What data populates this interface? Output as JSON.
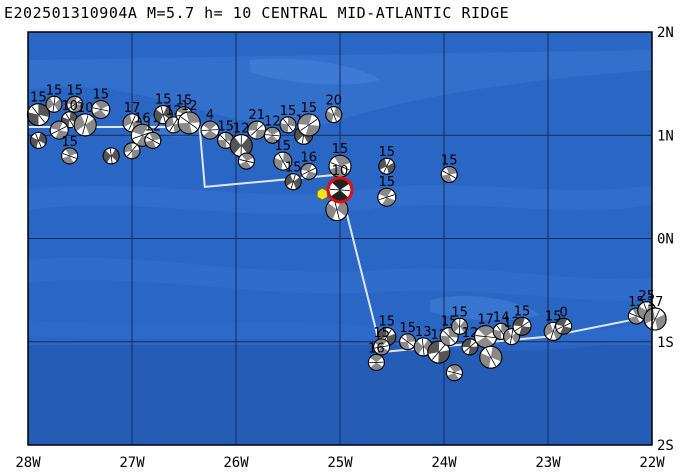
{
  "title": "E202501310904A M=5.7 h= 10 CENTRAL MID-ATLANTIC RIDGE",
  "lat_labels": [
    "2N",
    "1N",
    "0N",
    "1S",
    "2S"
  ],
  "lon_labels": [
    "28W",
    "27W",
    "26W",
    "25W",
    "24W",
    "23W",
    "22W"
  ],
  "extent": {
    "lon": [
      -28,
      -22
    ],
    "lat": [
      -2,
      2
    ]
  },
  "colors": {
    "ocean": "#2a66c4",
    "ocean_shallow": "#3b7ad6",
    "grid": "#1a2a55",
    "ridge": "#dfe6f2",
    "event": "#e01010",
    "epicenter": "#f2e51e"
  },
  "epicenter": {
    "lon": -25.17,
    "lat": 0.43,
    "symbol": "yellow-hexagon"
  },
  "main_event": {
    "lon": -25.0,
    "lat": 0.47,
    "label": "10"
  },
  "plate_boundary": [
    [
      -28.0,
      1.08
    ],
    [
      -26.35,
      1.08
    ],
    [
      -26.3,
      0.5
    ],
    [
      -25.0,
      0.62
    ],
    [
      -24.95,
      0.3
    ],
    [
      -24.6,
      -1.1
    ],
    [
      -23.0,
      -0.95
    ],
    [
      -22.0,
      -0.75
    ]
  ],
  "mechanisms": [
    {
      "lon": -27.9,
      "lat": 1.2,
      "label": "15"
    },
    {
      "lon": -27.75,
      "lat": 1.3,
      "label": "15"
    },
    {
      "lon": -27.55,
      "lat": 1.3,
      "label": "15"
    },
    {
      "lon": -27.3,
      "lat": 1.25,
      "label": "15"
    },
    {
      "lon": -27.6,
      "lat": 1.15,
      "label": "10"
    },
    {
      "lon": -27.45,
      "lat": 1.1,
      "label": "10"
    },
    {
      "lon": -27.7,
      "lat": 1.05,
      "label": ""
    },
    {
      "lon": -27.6,
      "lat": 0.8,
      "label": "15"
    },
    {
      "lon": -27.9,
      "lat": 0.95,
      "label": ""
    },
    {
      "lon": -27.0,
      "lat": 1.12,
      "label": "17"
    },
    {
      "lon": -26.9,
      "lat": 1.0,
      "label": "16"
    },
    {
      "lon": -26.8,
      "lat": 0.95,
      "label": "12"
    },
    {
      "lon": -26.7,
      "lat": 1.2,
      "label": "15"
    },
    {
      "lon": -26.6,
      "lat": 1.1,
      "label": "12"
    },
    {
      "lon": -26.5,
      "lat": 1.2,
      "label": "15"
    },
    {
      "lon": -26.45,
      "lat": 1.12,
      "label": "12"
    },
    {
      "lon": -27.2,
      "lat": 0.8,
      "label": ""
    },
    {
      "lon": -27.0,
      "lat": 0.85,
      "label": ""
    },
    {
      "lon": -26.25,
      "lat": 1.05,
      "label": "4"
    },
    {
      "lon": -26.1,
      "lat": 0.95,
      "label": "15"
    },
    {
      "lon": -25.95,
      "lat": 0.9,
      "label": "12"
    },
    {
      "lon": -25.8,
      "lat": 1.05,
      "label": "21"
    },
    {
      "lon": -25.65,
      "lat": 1.0,
      "label": "12"
    },
    {
      "lon": -25.5,
      "lat": 1.1,
      "label": "15"
    },
    {
      "lon": -25.35,
      "lat": 1.0,
      "label": "12"
    },
    {
      "lon": -25.3,
      "lat": 1.1,
      "label": "15"
    },
    {
      "lon": -25.9,
      "lat": 0.75,
      "label": ""
    },
    {
      "lon": -25.55,
      "lat": 0.75,
      "label": "15"
    },
    {
      "lon": -25.45,
      "lat": 0.55,
      "label": "15"
    },
    {
      "lon": -25.3,
      "lat": 0.65,
      "label": "16"
    },
    {
      "lon": -25.0,
      "lat": 0.7,
      "label": "15"
    },
    {
      "lon": -25.06,
      "lat": 1.2,
      "label": "20"
    },
    {
      "lon": -24.55,
      "lat": 0.7,
      "label": "15"
    },
    {
      "lon": -24.55,
      "lat": 0.4,
      "label": "15"
    },
    {
      "lon": -23.95,
      "lat": 0.62,
      "label": "15"
    },
    {
      "lon": -25.03,
      "lat": 0.28,
      "label": ""
    },
    {
      "lon": -24.55,
      "lat": -0.95,
      "label": "15"
    },
    {
      "lon": -24.6,
      "lat": -1.05,
      "label": "15"
    },
    {
      "lon": -24.35,
      "lat": -1.0,
      "label": "15"
    },
    {
      "lon": -24.2,
      "lat": -1.05,
      "label": "13"
    },
    {
      "lon": -24.05,
      "lat": -1.1,
      "label": "12"
    },
    {
      "lon": -24.65,
      "lat": -1.2,
      "label": "16"
    },
    {
      "lon": -23.95,
      "lat": -0.95,
      "label": "15"
    },
    {
      "lon": -23.85,
      "lat": -0.85,
      "label": "15"
    },
    {
      "lon": -23.75,
      "lat": -1.05,
      "label": "12"
    },
    {
      "lon": -23.6,
      "lat": -0.95,
      "label": "17"
    },
    {
      "lon": -23.45,
      "lat": -0.9,
      "label": "14"
    },
    {
      "lon": -23.35,
      "lat": -0.95,
      "label": "12"
    },
    {
      "lon": -23.25,
      "lat": -0.85,
      "label": "15"
    },
    {
      "lon": -23.9,
      "lat": -1.3,
      "label": ""
    },
    {
      "lon": -23.55,
      "lat": -1.15,
      "label": ""
    },
    {
      "lon": -22.95,
      "lat": -0.9,
      "label": "15"
    },
    {
      "lon": -22.85,
      "lat": -0.85,
      "label": "0"
    },
    {
      "lon": -22.15,
      "lat": -0.75,
      "label": "15"
    },
    {
      "lon": -22.05,
      "lat": -0.7,
      "label": "25"
    },
    {
      "lon": -21.97,
      "lat": -0.78,
      "label": "17"
    }
  ]
}
